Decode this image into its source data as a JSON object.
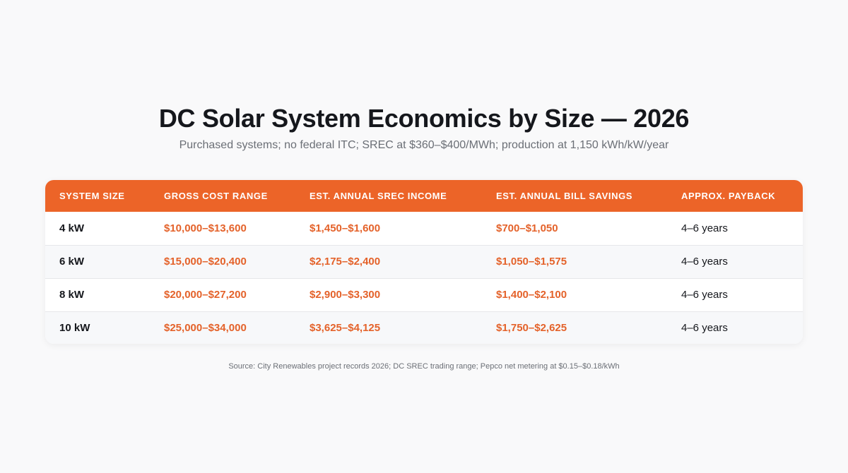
{
  "chart_data": {
    "type": "table",
    "title": "DC Solar System Economics by Size — 2026",
    "subtitle": "Purchased systems; no federal ITC; SREC at $360–$400/MWh; production at 1,150 kWh/kW/year",
    "columns": [
      "SYSTEM SIZE",
      "GROSS COST RANGE",
      "EST. ANNUAL SREC INCOME",
      "EST. ANNUAL BILL SAVINGS",
      "APPROX. PAYBACK"
    ],
    "rows": [
      [
        "4 kW",
        "$10,000–$13,600",
        "$1,450–$1,600",
        "$700–$1,050",
        "4–6 years"
      ],
      [
        "6 kW",
        "$15,000–$20,400",
        "$2,175–$2,400",
        "$1,050–$1,575",
        "4–6 years"
      ],
      [
        "8 kW",
        "$20,000–$27,200",
        "$2,900–$3,300",
        "$1,400–$2,100",
        "4–6 years"
      ],
      [
        "10 kW",
        "$25,000–$34,000",
        "$3,625–$4,125",
        "$1,750–$2,625",
        "4–6 years"
      ]
    ],
    "source": "Source: City Renewables project records 2026; DC SREC trading range; Pepco net metering at $0.15–$0.18/kWh"
  },
  "colors": {
    "header_bg": "#ec6428",
    "accent_text": "#e4622a",
    "page_bg": "#f9f9fa",
    "alt_row_bg": "#f7f8fa"
  }
}
